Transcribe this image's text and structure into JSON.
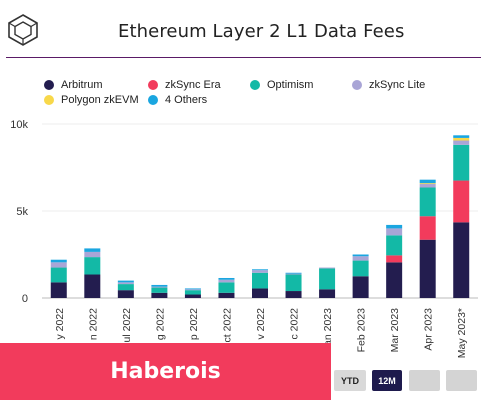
{
  "header": {
    "title": "Ethereum Layer 2 L1 Data Fees",
    "logo_icon": "cube-icon"
  },
  "legend": [
    {
      "label": "Arbitrum",
      "color": "#231d4f"
    },
    {
      "label": "zkSync Era",
      "color": "#f23b5c"
    },
    {
      "label": "Optimism",
      "color": "#13b9a6"
    },
    {
      "label": "zkSync Lite",
      "color": "#a9a5d6"
    },
    {
      "label": "Polygon zkEVM",
      "color": "#f8d84a"
    },
    {
      "label": "4 Others",
      "color": "#1aa6e0"
    }
  ],
  "chart_data": {
    "type": "bar",
    "stacked": true,
    "title": "Ethereum Layer 2 L1 Data Fees",
    "xlabel": "",
    "ylabel": "",
    "ylim": [
      0,
      10000
    ],
    "y_ticks": [
      "0",
      "5k",
      "10k"
    ],
    "categories": [
      "y 2022",
      "n 2022",
      "ul 2022",
      "g 2022",
      "p 2022",
      "ct 2022",
      "v 2022",
      "c 2022",
      "Jan 2023",
      "Feb 2023",
      "Mar 2023",
      "Apr 2023",
      "May 2023*"
    ],
    "series": [
      {
        "name": "Arbitrum",
        "color": "#231d4f",
        "values": [
          900,
          1350,
          450,
          300,
          200,
          300,
          550,
          400,
          500,
          1250,
          2050,
          3350,
          4350
        ]
      },
      {
        "name": "zkSync Era",
        "color": "#f23b5c",
        "values": [
          0,
          0,
          0,
          0,
          0,
          0,
          0,
          0,
          0,
          0,
          400,
          1350,
          2400
        ]
      },
      {
        "name": "Optimism",
        "color": "#13b9a6",
        "values": [
          850,
          1000,
          350,
          300,
          250,
          600,
          900,
          950,
          1200,
          900,
          1150,
          1650,
          2050
        ]
      },
      {
        "name": "zkSync Lite",
        "color": "#a9a5d6",
        "values": [
          300,
          300,
          100,
          50,
          50,
          150,
          150,
          50,
          50,
          250,
          400,
          200,
          250
        ]
      },
      {
        "name": "Polygon zkEVM",
        "color": "#f8d84a",
        "values": [
          0,
          0,
          0,
          0,
          0,
          0,
          0,
          0,
          0,
          0,
          0,
          50,
          150
        ]
      },
      {
        "name": "4 Others",
        "color": "#1aa6e0",
        "values": [
          150,
          200,
          100,
          100,
          50,
          100,
          50,
          50,
          0,
          100,
          200,
          200,
          150
        ]
      }
    ]
  },
  "brand": {
    "label": "Haberois"
  },
  "range_buttons": [
    {
      "label": "YTD",
      "active": false
    },
    {
      "label": "12M",
      "active": true
    },
    {
      "label": "",
      "active": false
    },
    {
      "label": "",
      "active": false
    }
  ]
}
